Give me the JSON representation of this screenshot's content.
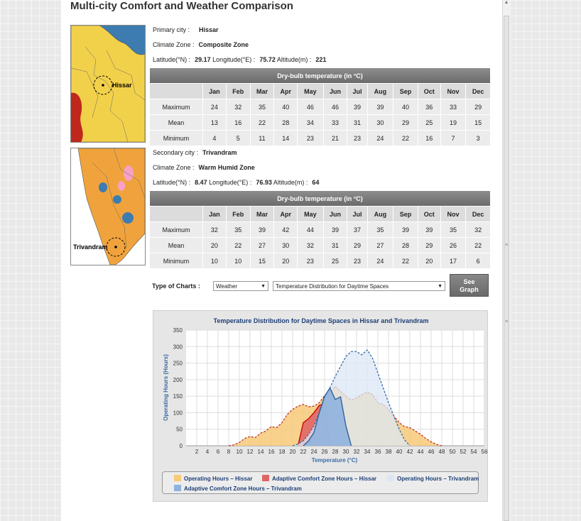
{
  "page": {
    "title": "Multi-city Comfort and Weather Comparison"
  },
  "months": [
    "Jan",
    "Feb",
    "Mar",
    "Apr",
    "May",
    "Jun",
    "Jul",
    "Aug",
    "Sep",
    "Oct",
    "Nov",
    "Dec"
  ],
  "primary": {
    "city_label": "Primary city :",
    "city": "Hissar",
    "zone_label": "Climate Zone :",
    "zone": "Composite Zone",
    "lat_label": "Latitude(°N) :",
    "lat": "29.17",
    "lon_label": "Longitude(°E) :",
    "lon": "75.72",
    "alt_label": "Altitude(m) :",
    "alt": "221",
    "table_title": "Dry-bulb temperature (in °C)",
    "rows": [
      {
        "label": "Maximum",
        "values": [
          "24",
          "32",
          "35",
          "40",
          "46",
          "46",
          "39",
          "39",
          "40",
          "36",
          "33",
          "29"
        ]
      },
      {
        "label": "Mean",
        "values": [
          "13",
          "16",
          "22",
          "28",
          "34",
          "33",
          "31",
          "30",
          "29",
          "25",
          "19",
          "15"
        ]
      },
      {
        "label": "Minimum",
        "values": [
          "4",
          "5",
          "11",
          "14",
          "23",
          "21",
          "23",
          "24",
          "22",
          "16",
          "7",
          "3"
        ]
      }
    ],
    "map_label": "Hissar"
  },
  "secondary": {
    "city_label": "Secondary city :",
    "city": "Trivandram",
    "zone_label": "Climate Zone :",
    "zone": "Warm Humid Zone",
    "lat_label": "Latitude(°N) :",
    "lat": "8.47",
    "lon_label": "Longitude(°E) :",
    "lon": "76.93",
    "alt_label": "Altitude(m) :",
    "alt": "64",
    "table_title": "Dry-bulb temperature (in °C)",
    "rows": [
      {
        "label": "Maximum",
        "values": [
          "32",
          "35",
          "39",
          "42",
          "44",
          "39",
          "37",
          "35",
          "39",
          "39",
          "35",
          "32"
        ]
      },
      {
        "label": "Mean",
        "values": [
          "20",
          "22",
          "27",
          "30",
          "32",
          "31",
          "29",
          "27",
          "28",
          "29",
          "26",
          "22"
        ]
      },
      {
        "label": "Minimum",
        "values": [
          "10",
          "10",
          "15",
          "20",
          "23",
          "25",
          "23",
          "24",
          "22",
          "20",
          "17",
          "6"
        ]
      }
    ],
    "map_label": "Trivandram"
  },
  "controls": {
    "type_label": "Type of Charts :",
    "chart_type": "Weather",
    "chart_name": "Temperature Distribution for Daytime Spaces",
    "button": "See Graph",
    "button_line1": "See",
    "button_line2": "Graph"
  },
  "chart_data": {
    "type": "area",
    "title": "Temperature Distribution for Daytime Spaces in Hissar and Trivandram",
    "xlabel": "Temperature (°C)",
    "ylabel": "Operating Hours (Hours)",
    "ylim": [
      0,
      350
    ],
    "yticks": [
      0,
      50,
      100,
      150,
      200,
      250,
      300,
      350
    ],
    "xticks": [
      2,
      4,
      6,
      8,
      10,
      12,
      14,
      16,
      18,
      20,
      22,
      24,
      26,
      28,
      30,
      32,
      34,
      36,
      38,
      40,
      42,
      44,
      46,
      48,
      50,
      52,
      54,
      56
    ],
    "grid": true,
    "legend_position": "bottom",
    "series": [
      {
        "name": "Operating Hours – Hissar",
        "color": "#f7c978",
        "line": "#c0392b",
        "points": [
          [
            8,
            0
          ],
          [
            9,
            3
          ],
          [
            10,
            10
          ],
          [
            11,
            22
          ],
          [
            12,
            28
          ],
          [
            13,
            25
          ],
          [
            14,
            38
          ],
          [
            15,
            45
          ],
          [
            16,
            58
          ],
          [
            17,
            55
          ],
          [
            18,
            70
          ],
          [
            19,
            95
          ],
          [
            20,
            110
          ],
          [
            21,
            120
          ],
          [
            22,
            125
          ],
          [
            23,
            118
          ],
          [
            24,
            120
          ],
          [
            25,
            130
          ],
          [
            26,
            152
          ],
          [
            27,
            160
          ],
          [
            28,
            180
          ],
          [
            29,
            165
          ],
          [
            30,
            150
          ],
          [
            31,
            138
          ],
          [
            32,
            145
          ],
          [
            33,
            155
          ],
          [
            34,
            162
          ],
          [
            35,
            155
          ],
          [
            36,
            130
          ],
          [
            37,
            125
          ],
          [
            38,
            110
          ],
          [
            39,
            90
          ],
          [
            40,
            70
          ],
          [
            41,
            58
          ],
          [
            42,
            55
          ],
          [
            43,
            45
          ],
          [
            44,
            35
          ],
          [
            45,
            22
          ],
          [
            46,
            12
          ],
          [
            47,
            4
          ],
          [
            48,
            0
          ]
        ]
      },
      {
        "name": "Adaptive Comfort Zone Hours – Hissar",
        "color": "#e06666",
        "line": "#c00000",
        "points": [
          [
            21,
            0
          ],
          [
            22,
            70
          ],
          [
            23,
            82
          ],
          [
            24,
            100
          ],
          [
            25,
            122
          ],
          [
            26,
            128
          ],
          [
            27,
            0
          ]
        ]
      },
      {
        "name": "Operating Hours – Trivandram",
        "color": "#dce7f5",
        "line": "#3a6ea5",
        "points": [
          [
            20,
            0
          ],
          [
            21,
            5
          ],
          [
            22,
            15
          ],
          [
            23,
            35
          ],
          [
            24,
            60
          ],
          [
            25,
            100
          ],
          [
            26,
            140
          ],
          [
            27,
            175
          ],
          [
            28,
            210
          ],
          [
            29,
            240
          ],
          [
            30,
            270
          ],
          [
            31,
            285
          ],
          [
            32,
            285
          ],
          [
            33,
            275
          ],
          [
            34,
            290
          ],
          [
            35,
            265
          ],
          [
            36,
            220
          ],
          [
            37,
            175
          ],
          [
            38,
            130
          ],
          [
            39,
            90
          ],
          [
            40,
            50
          ],
          [
            41,
            18
          ],
          [
            42,
            0
          ]
        ]
      },
      {
        "name": "Adaptive Comfort Zone Hours – Trivandram",
        "color": "#8fb2de",
        "line": "#2c5a94",
        "points": [
          [
            22,
            0
          ],
          [
            23,
            15
          ],
          [
            24,
            40
          ],
          [
            25,
            100
          ],
          [
            26,
            150
          ],
          [
            27,
            175
          ],
          [
            28,
            140
          ],
          [
            29,
            148
          ],
          [
            30,
            60
          ],
          [
            31,
            0
          ]
        ]
      }
    ]
  }
}
